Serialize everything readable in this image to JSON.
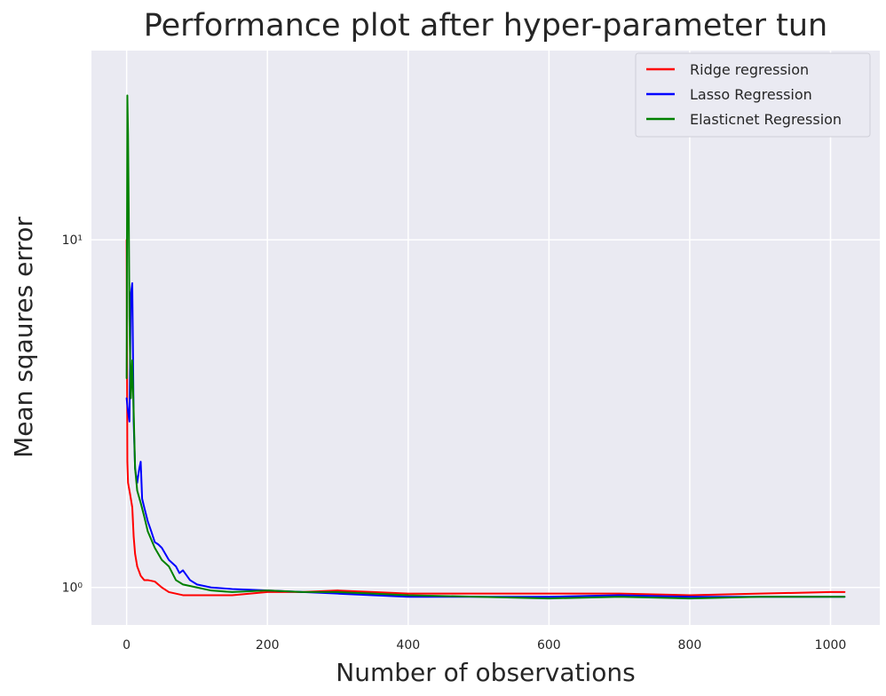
{
  "chart_data": {
    "type": "line",
    "title": "Performance plot after hyper-parameter tun",
    "xlabel": "Number of observations",
    "ylabel": "Mean sqaures error",
    "xlim": [
      -50,
      1070
    ],
    "ylim": [
      0.78,
      35
    ],
    "x_scale": "linear",
    "y_scale": "log",
    "x_ticks": [
      0,
      200,
      400,
      600,
      800,
      1000
    ],
    "x_tick_labels": [
      "0",
      "200",
      "400",
      "600",
      "800",
      "1000"
    ],
    "y_ticks": [
      1,
      10
    ],
    "y_tick_labels": [
      "10⁰",
      "10¹"
    ],
    "grid": true,
    "legend_position": "top-right",
    "background_color": "#eaeaf2",
    "grid_color": "#ffffff",
    "series": [
      {
        "name": "Ridge regression",
        "color": "#ff0000",
        "x": [
          0,
          1,
          2,
          3,
          5,
          8,
          10,
          12,
          15,
          20,
          25,
          30,
          40,
          50,
          60,
          80,
          100,
          120,
          150,
          200,
          250,
          300,
          350,
          400,
          500,
          600,
          700,
          800,
          900,
          1000,
          1020
        ],
        "y": [
          10,
          2.3,
          2.0,
          1.95,
          1.85,
          1.7,
          1.4,
          1.25,
          1.15,
          1.08,
          1.05,
          1.05,
          1.04,
          1.0,
          0.97,
          0.95,
          0.95,
          0.95,
          0.95,
          0.97,
          0.97,
          0.98,
          0.97,
          0.96,
          0.96,
          0.96,
          0.96,
          0.95,
          0.96,
          0.97,
          0.97
        ]
      },
      {
        "name": "Lasso Regression",
        "color": "#0000ff",
        "x": [
          0,
          2,
          4,
          6,
          8,
          10,
          12,
          15,
          18,
          20,
          22,
          25,
          30,
          35,
          40,
          45,
          50,
          60,
          70,
          75,
          80,
          90,
          100,
          120,
          150,
          200,
          250,
          300,
          350,
          400,
          500,
          600,
          700,
          800,
          900,
          1000,
          1020
        ],
        "y": [
          3.5,
          3.2,
          3.0,
          7.0,
          7.5,
          3.0,
          2.2,
          2.0,
          2.2,
          2.3,
          1.8,
          1.7,
          1.55,
          1.45,
          1.35,
          1.33,
          1.3,
          1.2,
          1.15,
          1.1,
          1.12,
          1.05,
          1.02,
          1.0,
          0.99,
          0.98,
          0.97,
          0.96,
          0.95,
          0.94,
          0.94,
          0.94,
          0.95,
          0.94,
          0.94,
          0.94,
          0.94
        ]
      },
      {
        "name": "Elasticnet Regression",
        "color": "#008000",
        "x": [
          0,
          1,
          2,
          3,
          4,
          5,
          6,
          8,
          10,
          12,
          15,
          20,
          25,
          30,
          40,
          50,
          60,
          70,
          80,
          100,
          120,
          150,
          200,
          250,
          300,
          350,
          400,
          500,
          600,
          700,
          800,
          900,
          1000,
          1020
        ],
        "y": [
          4,
          26,
          20,
          12,
          6.0,
          4.5,
          3.5,
          4.5,
          3.2,
          2.2,
          1.9,
          1.75,
          1.6,
          1.45,
          1.3,
          1.2,
          1.15,
          1.05,
          1.02,
          1.0,
          0.98,
          0.97,
          0.98,
          0.97,
          0.97,
          0.96,
          0.95,
          0.94,
          0.93,
          0.94,
          0.93,
          0.94,
          0.94,
          0.94
        ]
      }
    ]
  }
}
